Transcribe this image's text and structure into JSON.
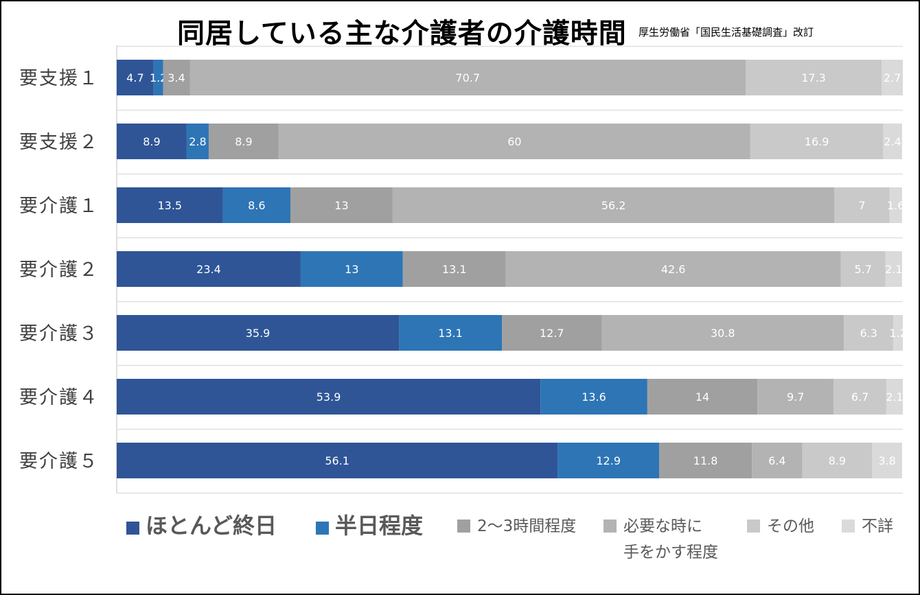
{
  "chart_data": {
    "type": "bar",
    "orientation": "horizontal",
    "stacked": true,
    "title": "同居している主な介護者の介護時間",
    "source": "厚生労働省「国民生活基礎調査」改訂",
    "categories": [
      "要支援１",
      "要支援２",
      "要介護１",
      "要介護２",
      "要介護３",
      "要介護４",
      "要介護５"
    ],
    "series": [
      {
        "name": "ほとんど終日",
        "color": "#2F5597",
        "label_color": "#FFFFFF",
        "values": [
          4.7,
          8.9,
          13.5,
          23.4,
          35.9,
          53.9,
          56.1
        ]
      },
      {
        "name": "半日程度",
        "color": "#2E75B6",
        "label_color": "#FFFFFF",
        "values": [
          1.2,
          2.8,
          8.6,
          13,
          13.1,
          13.6,
          12.9
        ]
      },
      {
        "name": "2～3時間程度",
        "color": "#A0A0A0",
        "label_color": "#FFFFFF",
        "values": [
          3.4,
          8.9,
          13,
          13.1,
          12.7,
          14,
          11.8
        ]
      },
      {
        "name": "必要な時に\n手をかす程度",
        "color": "#B3B3B3",
        "label_color": "#FFFFFF",
        "values": [
          70.7,
          60,
          56.2,
          42.6,
          30.8,
          9.7,
          6.4
        ]
      },
      {
        "name": "その他",
        "color": "#C9C9C9",
        "label_color": "#FFFFFF",
        "values": [
          17.3,
          16.9,
          7,
          5.7,
          6.3,
          6.7,
          8.9
        ]
      },
      {
        "name": "不詳",
        "color": "#DADADA",
        "label_color": "#FFFFFF",
        "values": [
          2.7,
          2.4,
          1.6,
          2.1,
          1.2,
          2.1,
          3.8
        ]
      }
    ],
    "xlim": [
      0,
      100
    ],
    "gridlines": "horizontal separators",
    "legend_position": "bottom"
  }
}
